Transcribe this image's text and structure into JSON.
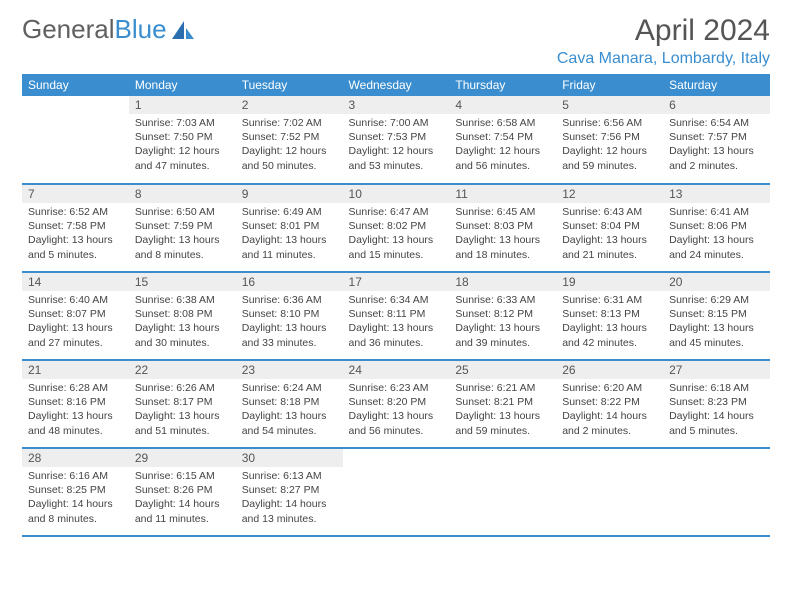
{
  "brand": {
    "part1": "General",
    "part2": "Blue"
  },
  "title": "April 2024",
  "location": "Cava Manara, Lombardy, Italy",
  "colors": {
    "accent": "#3a8ed0",
    "header_text": "#ffffff",
    "daynum_bg": "#eeeeee",
    "text": "#444444",
    "title_text": "#555555"
  },
  "weekdays": [
    "Sunday",
    "Monday",
    "Tuesday",
    "Wednesday",
    "Thursday",
    "Friday",
    "Saturday"
  ],
  "weeks": [
    [
      null,
      {
        "n": "1",
        "sr": "Sunrise: 7:03 AM",
        "ss": "Sunset: 7:50 PM",
        "dl1": "Daylight: 12 hours",
        "dl2": "and 47 minutes."
      },
      {
        "n": "2",
        "sr": "Sunrise: 7:02 AM",
        "ss": "Sunset: 7:52 PM",
        "dl1": "Daylight: 12 hours",
        "dl2": "and 50 minutes."
      },
      {
        "n": "3",
        "sr": "Sunrise: 7:00 AM",
        "ss": "Sunset: 7:53 PM",
        "dl1": "Daylight: 12 hours",
        "dl2": "and 53 minutes."
      },
      {
        "n": "4",
        "sr": "Sunrise: 6:58 AM",
        "ss": "Sunset: 7:54 PM",
        "dl1": "Daylight: 12 hours",
        "dl2": "and 56 minutes."
      },
      {
        "n": "5",
        "sr": "Sunrise: 6:56 AM",
        "ss": "Sunset: 7:56 PM",
        "dl1": "Daylight: 12 hours",
        "dl2": "and 59 minutes."
      },
      {
        "n": "6",
        "sr": "Sunrise: 6:54 AM",
        "ss": "Sunset: 7:57 PM",
        "dl1": "Daylight: 13 hours",
        "dl2": "and 2 minutes."
      }
    ],
    [
      {
        "n": "7",
        "sr": "Sunrise: 6:52 AM",
        "ss": "Sunset: 7:58 PM",
        "dl1": "Daylight: 13 hours",
        "dl2": "and 5 minutes."
      },
      {
        "n": "8",
        "sr": "Sunrise: 6:50 AM",
        "ss": "Sunset: 7:59 PM",
        "dl1": "Daylight: 13 hours",
        "dl2": "and 8 minutes."
      },
      {
        "n": "9",
        "sr": "Sunrise: 6:49 AM",
        "ss": "Sunset: 8:01 PM",
        "dl1": "Daylight: 13 hours",
        "dl2": "and 11 minutes."
      },
      {
        "n": "10",
        "sr": "Sunrise: 6:47 AM",
        "ss": "Sunset: 8:02 PM",
        "dl1": "Daylight: 13 hours",
        "dl2": "and 15 minutes."
      },
      {
        "n": "11",
        "sr": "Sunrise: 6:45 AM",
        "ss": "Sunset: 8:03 PM",
        "dl1": "Daylight: 13 hours",
        "dl2": "and 18 minutes."
      },
      {
        "n": "12",
        "sr": "Sunrise: 6:43 AM",
        "ss": "Sunset: 8:04 PM",
        "dl1": "Daylight: 13 hours",
        "dl2": "and 21 minutes."
      },
      {
        "n": "13",
        "sr": "Sunrise: 6:41 AM",
        "ss": "Sunset: 8:06 PM",
        "dl1": "Daylight: 13 hours",
        "dl2": "and 24 minutes."
      }
    ],
    [
      {
        "n": "14",
        "sr": "Sunrise: 6:40 AM",
        "ss": "Sunset: 8:07 PM",
        "dl1": "Daylight: 13 hours",
        "dl2": "and 27 minutes."
      },
      {
        "n": "15",
        "sr": "Sunrise: 6:38 AM",
        "ss": "Sunset: 8:08 PM",
        "dl1": "Daylight: 13 hours",
        "dl2": "and 30 minutes."
      },
      {
        "n": "16",
        "sr": "Sunrise: 6:36 AM",
        "ss": "Sunset: 8:10 PM",
        "dl1": "Daylight: 13 hours",
        "dl2": "and 33 minutes."
      },
      {
        "n": "17",
        "sr": "Sunrise: 6:34 AM",
        "ss": "Sunset: 8:11 PM",
        "dl1": "Daylight: 13 hours",
        "dl2": "and 36 minutes."
      },
      {
        "n": "18",
        "sr": "Sunrise: 6:33 AM",
        "ss": "Sunset: 8:12 PM",
        "dl1": "Daylight: 13 hours",
        "dl2": "and 39 minutes."
      },
      {
        "n": "19",
        "sr": "Sunrise: 6:31 AM",
        "ss": "Sunset: 8:13 PM",
        "dl1": "Daylight: 13 hours",
        "dl2": "and 42 minutes."
      },
      {
        "n": "20",
        "sr": "Sunrise: 6:29 AM",
        "ss": "Sunset: 8:15 PM",
        "dl1": "Daylight: 13 hours",
        "dl2": "and 45 minutes."
      }
    ],
    [
      {
        "n": "21",
        "sr": "Sunrise: 6:28 AM",
        "ss": "Sunset: 8:16 PM",
        "dl1": "Daylight: 13 hours",
        "dl2": "and 48 minutes."
      },
      {
        "n": "22",
        "sr": "Sunrise: 6:26 AM",
        "ss": "Sunset: 8:17 PM",
        "dl1": "Daylight: 13 hours",
        "dl2": "and 51 minutes."
      },
      {
        "n": "23",
        "sr": "Sunrise: 6:24 AM",
        "ss": "Sunset: 8:18 PM",
        "dl1": "Daylight: 13 hours",
        "dl2": "and 54 minutes."
      },
      {
        "n": "24",
        "sr": "Sunrise: 6:23 AM",
        "ss": "Sunset: 8:20 PM",
        "dl1": "Daylight: 13 hours",
        "dl2": "and 56 minutes."
      },
      {
        "n": "25",
        "sr": "Sunrise: 6:21 AM",
        "ss": "Sunset: 8:21 PM",
        "dl1": "Daylight: 13 hours",
        "dl2": "and 59 minutes."
      },
      {
        "n": "26",
        "sr": "Sunrise: 6:20 AM",
        "ss": "Sunset: 8:22 PM",
        "dl1": "Daylight: 14 hours",
        "dl2": "and 2 minutes."
      },
      {
        "n": "27",
        "sr": "Sunrise: 6:18 AM",
        "ss": "Sunset: 8:23 PM",
        "dl1": "Daylight: 14 hours",
        "dl2": "and 5 minutes."
      }
    ],
    [
      {
        "n": "28",
        "sr": "Sunrise: 6:16 AM",
        "ss": "Sunset: 8:25 PM",
        "dl1": "Daylight: 14 hours",
        "dl2": "and 8 minutes."
      },
      {
        "n": "29",
        "sr": "Sunrise: 6:15 AM",
        "ss": "Sunset: 8:26 PM",
        "dl1": "Daylight: 14 hours",
        "dl2": "and 11 minutes."
      },
      {
        "n": "30",
        "sr": "Sunrise: 6:13 AM",
        "ss": "Sunset: 8:27 PM",
        "dl1": "Daylight: 14 hours",
        "dl2": "and 13 minutes."
      },
      null,
      null,
      null,
      null
    ]
  ]
}
